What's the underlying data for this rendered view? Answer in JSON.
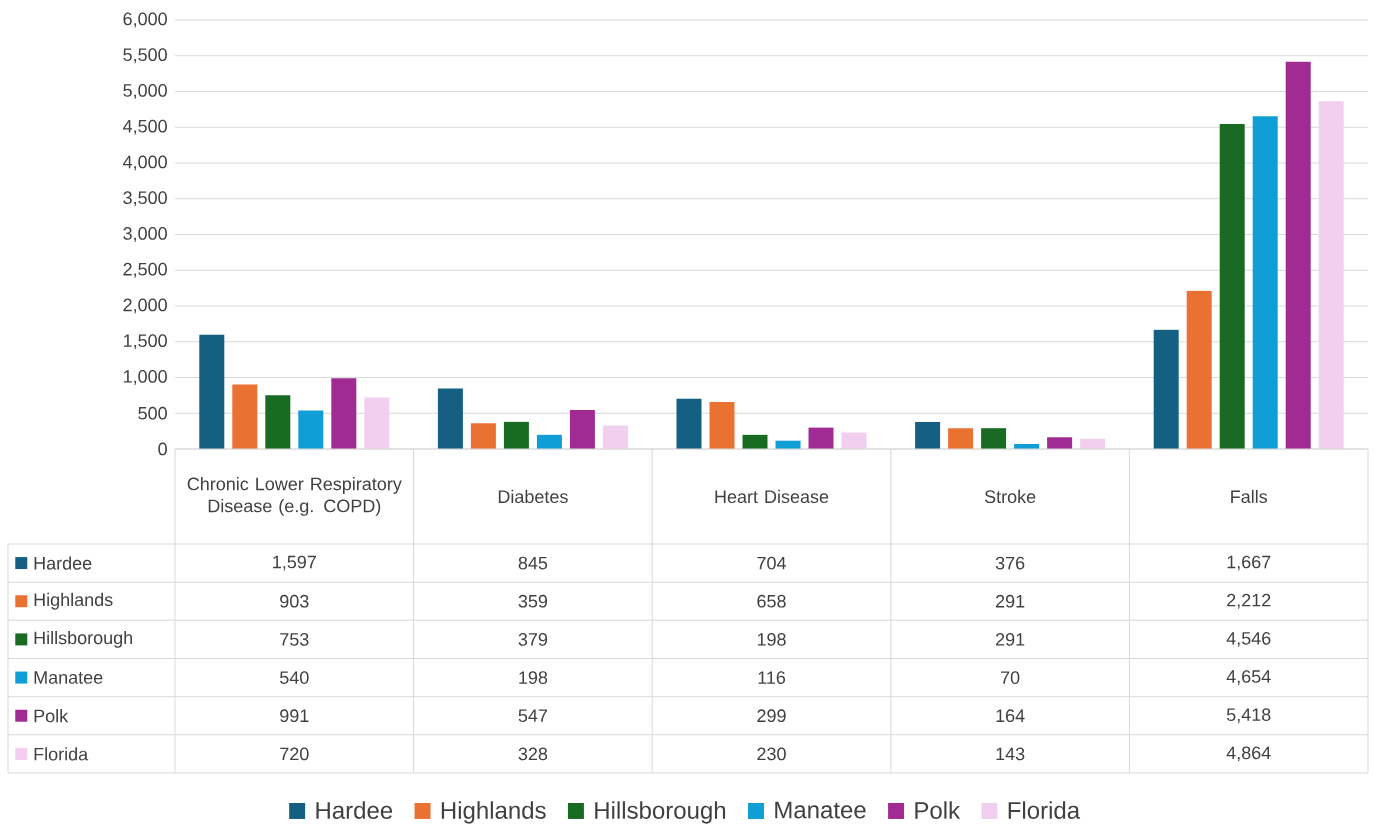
{
  "chart_data": {
    "type": "bar",
    "categories": [
      "Chronic Lower Respiratory Disease (e.g. COPD)",
      "Diabetes",
      "Heart Disease",
      "Stroke",
      "Falls"
    ],
    "series": [
      {
        "name": "Hardee",
        "color": "#156082",
        "values": [
          1597,
          845,
          704,
          376,
          1667
        ],
        "value_labels": [
          "1,597",
          "845",
          "704",
          "376",
          "1,667"
        ]
      },
      {
        "name": "Highlands",
        "color": "#e97132",
        "values": [
          903,
          359,
          658,
          291,
          2212
        ],
        "value_labels": [
          "903",
          "359",
          "658",
          "291",
          "2,212"
        ]
      },
      {
        "name": "Hillsborough",
        "color": "#196b24",
        "values": [
          753,
          379,
          198,
          291,
          4546
        ],
        "value_labels": [
          "753",
          "379",
          "198",
          "291",
          "4,546"
        ]
      },
      {
        "name": "Manatee",
        "color": "#0f9ed5",
        "values": [
          540,
          198,
          116,
          70,
          4654
        ],
        "value_labels": [
          "540",
          "198",
          "116",
          "70",
          "4,654"
        ]
      },
      {
        "name": "Polk",
        "color": "#a02b93",
        "values": [
          991,
          547,
          299,
          164,
          5418
        ],
        "value_labels": [
          "991",
          "547",
          "299",
          "164",
          "5,418"
        ]
      },
      {
        "name": "Florida",
        "color": "#f2ceef",
        "values": [
          720,
          328,
          230,
          143,
          4864
        ],
        "value_labels": [
          "720",
          "328",
          "230",
          "143",
          "4,864"
        ]
      }
    ],
    "ylim": [
      0,
      6000
    ],
    "yticks": [
      0,
      500,
      {
        "value": 1000,
        "label": "1,000"
      },
      {
        "value": 1500,
        "label": "1,500"
      },
      {
        "value": 2000,
        "label": "2,000"
      },
      {
        "value": 2500,
        "label": "2,500"
      },
      {
        "value": 3000,
        "label": "3,000"
      },
      {
        "value": 3500,
        "label": "3,500"
      },
      {
        "value": 4000,
        "label": "4,000"
      },
      {
        "value": 4500,
        "label": "4,500"
      },
      {
        "value": 5000,
        "label": "5,000"
      },
      {
        "value": 5500,
        "label": "5,500"
      },
      {
        "value": 6000,
        "label": "6,000"
      }
    ],
    "grid": "y",
    "legend": "bottom"
  }
}
